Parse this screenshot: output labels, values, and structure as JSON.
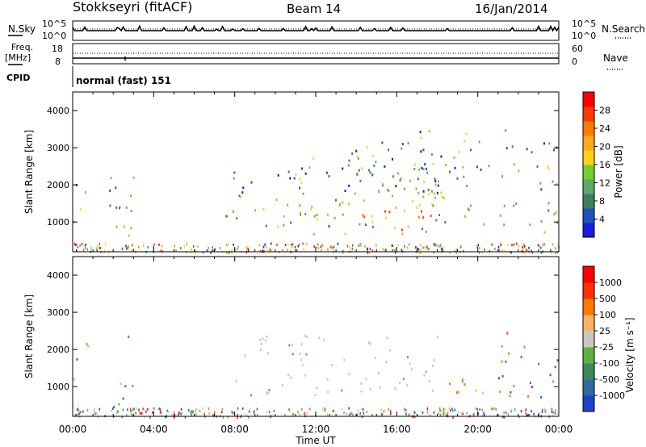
{
  "header": {
    "title": "Stokkseyri (fitACF)",
    "beam": "Beam 14",
    "date": "16/Jan/2014"
  },
  "top_panels": {
    "nsky_label": "N.Sky",
    "nsky_ticks": [
      "10^5",
      "10^0"
    ],
    "nsearch_label": "N.Search",
    "nsearch_ticks": [
      "10^5",
      "10^0"
    ],
    "freq_label": "Freq.",
    "freq_unit": "[MHz]",
    "freq_ticks": [
      "18",
      "8"
    ],
    "nave_label": "Nave",
    "nave_ticks": [
      "60",
      "0"
    ],
    "cpid_label": "CPID",
    "cpid_text": "normal (fast) 151"
  },
  "chart_data": [
    {
      "type": "heatmap",
      "name": "power-panel",
      "ylabel": "Slant Range [km]",
      "ylim": [
        200,
        4500
      ],
      "yticks": [
        "1000",
        "2000",
        "3000",
        "4000"
      ],
      "colorbar_label": "Power [dB]",
      "colorbar_ticks": [
        "4",
        "8",
        "12",
        "16",
        "20",
        "24",
        "28"
      ],
      "colorbar_colors": [
        "#1a1ae6",
        "#1f52b5",
        "#3f7f5f",
        "#5fa86a",
        "#76d02a",
        "#ffd21a",
        "#ffaa18",
        "#ff7a00",
        "#ff3a00",
        "#ff0000"
      ],
      "regions": [
        {
          "t0": 0.0,
          "t1": 0.8,
          "r0": 900,
          "r1": 2200
        },
        {
          "t0": 1.6,
          "t1": 3.0,
          "r0": 300,
          "r1": 2900
        },
        {
          "t0": 7.5,
          "t1": 12.0,
          "r0": 900,
          "r1": 2400
        },
        {
          "t0": 10.5,
          "t1": 17.5,
          "r0": 700,
          "r1": 2800
        },
        {
          "t0": 12.5,
          "t1": 18.0,
          "r0": 800,
          "r1": 3200
        },
        {
          "t0": 17.0,
          "t1": 24.0,
          "r0": 700,
          "r1": 3500
        }
      ]
    },
    {
      "type": "heatmap",
      "name": "velocity-panel",
      "ylabel": "Slant Range [km]",
      "ylim": [
        200,
        4500
      ],
      "yticks": [
        "1000",
        "2000",
        "3000",
        "4000"
      ],
      "xlabel": "Time UT",
      "xticks": [
        "00:00",
        "04:00",
        "08:00",
        "12:00",
        "16:00",
        "20:00",
        "00:00"
      ],
      "colorbar_label": "Velocity [m s⁻¹]",
      "colorbar_ticks": [
        "1000",
        "500",
        "100",
        "25",
        "-25",
        "-100",
        "-500",
        "-1000"
      ],
      "colorbar_colors": [
        "#1f3fd0",
        "#2f6aa0",
        "#3a8a5a",
        "#60b040",
        "#c8c8be",
        "#ffb060",
        "#ff7a00",
        "#ff3000",
        "#ff0000"
      ],
      "regions": [
        {
          "t0": 0.0,
          "t1": 0.8,
          "r0": 900,
          "r1": 2200
        },
        {
          "t0": 2.0,
          "t1": 3.0,
          "r0": 300,
          "r1": 2900
        },
        {
          "t0": 8.0,
          "t1": 18.0,
          "r0": 800,
          "r1": 2400
        },
        {
          "t0": 18.5,
          "t1": 20.5,
          "r0": 800,
          "r1": 1800
        },
        {
          "t0": 21.0,
          "t1": 24.0,
          "r0": 700,
          "r1": 2500
        }
      ]
    }
  ]
}
